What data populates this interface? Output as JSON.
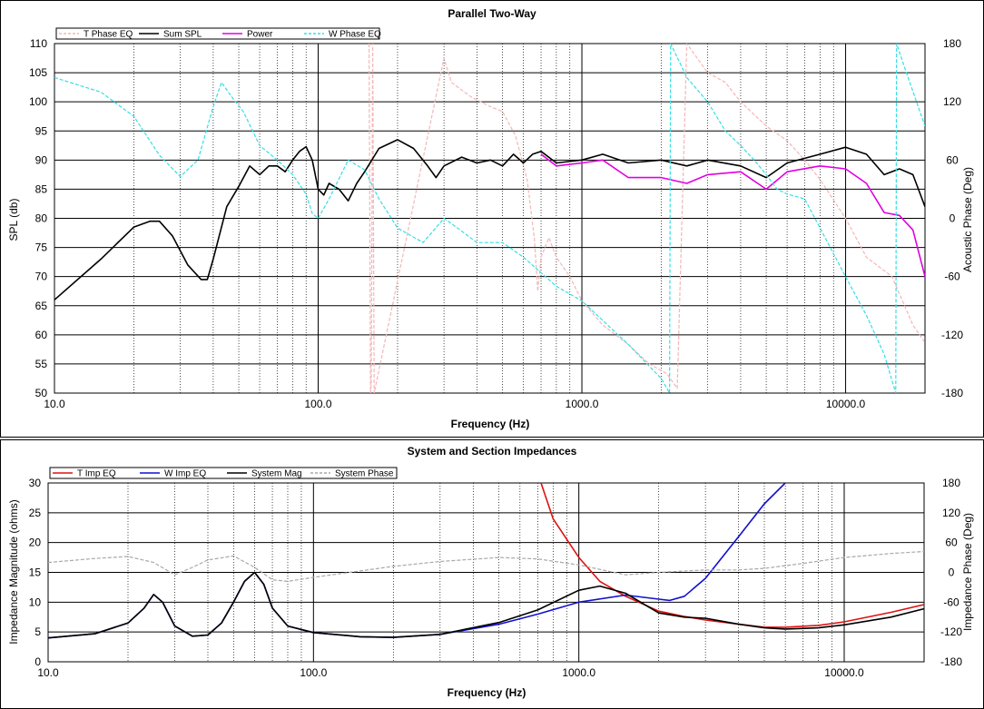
{
  "chart_data": [
    {
      "type": "line",
      "title": "Parallel Two-Way",
      "xlabel": "Frequency (Hz)",
      "ylabel": "SPL (db)",
      "y2label": "Acoustic Phase (Deg)",
      "x_scale": "log",
      "xlim": [
        10,
        20000
      ],
      "ylim": [
        50,
        110
      ],
      "y2lim": [
        -180,
        180
      ],
      "x_ticks": [
        "10.0",
        "100.0",
        "1000.0",
        "10000.0"
      ],
      "y_ticks": [
        "50",
        "55",
        "60",
        "65",
        "70",
        "75",
        "80",
        "85",
        "90",
        "95",
        "100",
        "105",
        "110"
      ],
      "y2_ticks": [
        "-180",
        "-120",
        "-60",
        "0",
        "60",
        "120",
        "180"
      ],
      "grid": true,
      "legend_position": "top-left",
      "series": [
        {
          "name": "T Phase EQ",
          "axis": "y2",
          "color": "#f4b6b6",
          "dash": "dashed",
          "x": [
            156,
            158,
            159,
            161,
            163,
            300,
            320,
            380,
            450,
            500,
            560,
            620,
            660,
            680,
            700,
            750,
            800,
            900,
            1000,
            1200,
            1500,
            1800,
            2100,
            2300,
            2500,
            3000,
            3500,
            4000,
            5000,
            6000,
            7000,
            8000,
            10000,
            12000,
            15000,
            18000,
            20000
          ],
          "y": [
            180,
            -180,
            -170,
            180,
            -180,
            165,
            140,
            125,
            115,
            110,
            85,
            40,
            -20,
            -75,
            -40,
            -20,
            -40,
            -60,
            -85,
            -110,
            -130,
            -150,
            -160,
            -175,
            180,
            150,
            140,
            120,
            95,
            80,
            60,
            40,
            0,
            -40,
            -60,
            -110,
            -128
          ]
        },
        {
          "name": "Sum SPL",
          "axis": "y",
          "color": "#000000",
          "dash": "solid",
          "x": [
            10,
            15,
            20,
            23,
            25,
            28,
            32,
            36,
            38,
            40,
            45,
            50,
            55,
            60,
            65,
            70,
            75,
            80,
            85,
            90,
            95,
            100,
            105,
            110,
            120,
            130,
            140,
            150,
            170,
            200,
            230,
            260,
            280,
            300,
            350,
            400,
            450,
            500,
            550,
            600,
            650,
            700,
            800,
            1000,
            1200,
            1500,
            2000,
            2500,
            3000,
            4000,
            5000,
            6000,
            8000,
            10000,
            12000,
            14000,
            16000,
            18000,
            20000
          ],
          "y": [
            66,
            73,
            78.5,
            79.5,
            79.5,
            77,
            72,
            69.5,
            69.5,
            73,
            82,
            85.5,
            89,
            87.5,
            89,
            89,
            88,
            90,
            91.5,
            92.3,
            90,
            85,
            84,
            86,
            85,
            83,
            86,
            88,
            92,
            93.5,
            92,
            89,
            87,
            89,
            90.5,
            89.5,
            90,
            89,
            91,
            89.5,
            91,
            91.5,
            89.5,
            90,
            91,
            89.5,
            90,
            89,
            90,
            89,
            87,
            89.5,
            91,
            92.2,
            91,
            87.5,
            88.5,
            87.5,
            82
          ]
        },
        {
          "name": "Power",
          "axis": "y",
          "color": "#e100e1",
          "dash": "solid",
          "x": [
            700,
            800,
            1000,
            1200,
            1500,
            2000,
            2500,
            3000,
            4000,
            5000,
            6000,
            8000,
            10000,
            12000,
            14000,
            16000,
            18000,
            20000
          ],
          "y": [
            91,
            89,
            89.5,
            90,
            87,
            87,
            86,
            87.5,
            88,
            85,
            88,
            89,
            88.5,
            86,
            81,
            80.5,
            78,
            70
          ]
        },
        {
          "name": "W Phase EQ",
          "axis": "y2",
          "color": "#33dfe6",
          "dash": "dashed",
          "x": [
            10,
            15,
            20,
            25,
            30,
            35,
            40,
            43,
            47,
            52,
            60,
            70,
            80,
            90,
            95,
            100,
            110,
            130,
            150,
            170,
            200,
            250,
            300,
            330,
            400,
            500,
            600,
            800,
            1000,
            1500,
            2000,
            2150,
            2170,
            2500,
            3000,
            3500,
            4000,
            4500,
            5000,
            5500,
            6000,
            7000,
            8000,
            10000,
            12000,
            14000,
            15500,
            15600,
            17000,
            20000
          ],
          "y": [
            145,
            130,
            105,
            65,
            43,
            60,
            115,
            140,
            125,
            110,
            75,
            60,
            45,
            25,
            5,
            0,
            20,
            60,
            50,
            20,
            -10,
            -25,
            0,
            -8,
            -25,
            -25,
            -40,
            -70,
            -85,
            -130,
            -165,
            -180,
            180,
            145,
            120,
            90,
            75,
            60,
            45,
            30,
            25,
            20,
            -10,
            -60,
            -100,
            -140,
            -180,
            180,
            150,
            95
          ]
        }
      ]
    },
    {
      "type": "line",
      "title": "System and Section Impedances",
      "xlabel": "Frequency (Hz)",
      "ylabel": "Impedance Magnitude (ohms)",
      "y2label": "Impedance Phase (Deg)",
      "x_scale": "log",
      "xlim": [
        10,
        20000
      ],
      "ylim": [
        0,
        30
      ],
      "y2lim": [
        -180,
        180
      ],
      "x_ticks": [
        "10.0",
        "100.0",
        "1000.0",
        "10000.0"
      ],
      "y_ticks": [
        "0",
        "5",
        "10",
        "15",
        "20",
        "25",
        "30"
      ],
      "y2_ticks": [
        "-180",
        "-120",
        "-60",
        "0",
        "60",
        "120",
        "180"
      ],
      "grid": true,
      "legend_position": "top-left",
      "series": [
        {
          "name": "T Imp EQ",
          "axis": "y",
          "color": "#e01010",
          "dash": "solid",
          "x": [
            720,
            800,
            1000,
            1200,
            1500,
            2000,
            2500,
            3000,
            4000,
            5000,
            6000,
            8000,
            10000,
            15000,
            20000
          ],
          "y": [
            30,
            24,
            17.5,
            13.5,
            11,
            8.5,
            7.6,
            7,
            6.3,
            5.8,
            5.8,
            6.1,
            6.7,
            8.3,
            9.6
          ]
        },
        {
          "name": "W Imp EQ",
          "axis": "y",
          "color": "#1010d0",
          "dash": "solid",
          "x": [
            10,
            15,
            20,
            23,
            25,
            27,
            30,
            35,
            40,
            45,
            50,
            55,
            60,
            65,
            70,
            80,
            100,
            150,
            200,
            300,
            500,
            700,
            1000,
            1500,
            2000,
            2200,
            2500,
            3000,
            4000,
            5000,
            6000
          ],
          "y": [
            4,
            4.7,
            6.5,
            9,
            11.3,
            10,
            6,
            4.3,
            4.5,
            6.5,
            10,
            13.5,
            15,
            13,
            9,
            6,
            4.9,
            4.2,
            4.1,
            4.6,
            6.3,
            8,
            10,
            11.2,
            10.5,
            10.3,
            11,
            14,
            21,
            26.5,
            30
          ]
        },
        {
          "name": "System Mag",
          "axis": "y",
          "color": "#000000",
          "dash": "solid",
          "x": [
            10,
            15,
            20,
            23,
            25,
            27,
            30,
            35,
            40,
            45,
            50,
            55,
            60,
            65,
            70,
            80,
            100,
            150,
            200,
            300,
            500,
            700,
            1000,
            1200,
            1500,
            2000,
            2500,
            3000,
            4000,
            5000,
            6000,
            8000,
            10000,
            15000,
            20000
          ],
          "y": [
            4,
            4.7,
            6.5,
            9,
            11.3,
            10,
            6,
            4.3,
            4.5,
            6.5,
            10,
            13.5,
            15,
            13,
            9,
            6,
            4.9,
            4.2,
            4.1,
            4.6,
            6.6,
            8.7,
            12,
            12.7,
            11.5,
            8.2,
            7.5,
            7.3,
            6.3,
            5.7,
            5.5,
            5.7,
            6.2,
            7.5,
            8.9
          ]
        },
        {
          "name": "System Phase",
          "axis": "y2",
          "color": "#a8a8a8",
          "dash": "dashed",
          "x": [
            10,
            15,
            20,
            25,
            30,
            35,
            40,
            50,
            60,
            70,
            80,
            100,
            150,
            200,
            300,
            500,
            700,
            1000,
            1500,
            2000,
            3000,
            4000,
            5000,
            7000,
            10000,
            15000,
            20000
          ],
          "y": [
            20,
            28,
            32,
            20,
            -5,
            10,
            25,
            33,
            10,
            -15,
            -18,
            -10,
            3,
            12,
            22,
            30,
            27,
            15,
            -5,
            0,
            5,
            5,
            8,
            18,
            30,
            38,
            42
          ]
        }
      ]
    }
  ]
}
